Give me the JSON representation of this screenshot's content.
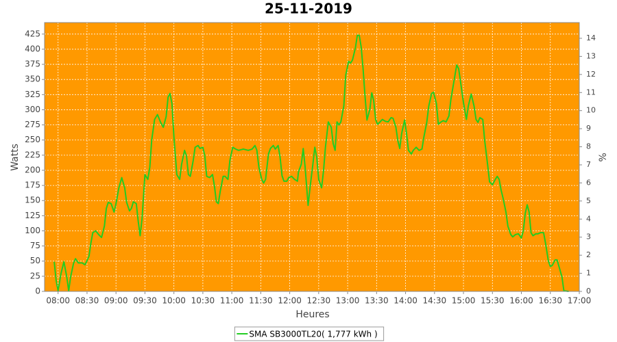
{
  "chart_data": {
    "type": "line",
    "title": "25-11-2019",
    "x_label": "Heures",
    "y_label": "Watts",
    "y2_label": "%",
    "x": [
      "07:56",
      "07:58",
      "08:00",
      "08:03",
      "08:06",
      "08:09",
      "08:11",
      "08:13",
      "08:16",
      "08:18",
      "08:21",
      "08:25",
      "08:28",
      "08:32",
      "08:34",
      "08:36",
      "08:39",
      "08:42",
      "08:45",
      "08:48",
      "08:50",
      "08:52",
      "08:55",
      "08:58",
      "09:00",
      "09:03",
      "09:06",
      "09:09",
      "09:11",
      "09:14",
      "09:16",
      "09:18",
      "09:21",
      "09:23",
      "09:25",
      "09:27",
      "09:30",
      "09:33",
      "09:35",
      "09:37",
      "09:40",
      "09:43",
      "09:46",
      "09:49",
      "09:52",
      "09:54",
      "09:56",
      "09:58",
      "10:00",
      "10:03",
      "10:06",
      "10:08",
      "10:11",
      "10:13",
      "10:15",
      "10:17",
      "10:20",
      "10:22",
      "10:25",
      "10:27",
      "10:30",
      "10:32",
      "10:34",
      "10:37",
      "10:40",
      "10:42",
      "10:44",
      "10:46",
      "10:48",
      "10:51",
      "10:53",
      "10:56",
      "10:58",
      "11:01",
      "11:04",
      "11:07",
      "11:12",
      "11:17",
      "11:21",
      "11:24",
      "11:26",
      "11:28",
      "11:31",
      "11:33",
      "11:35",
      "11:38",
      "11:40",
      "11:43",
      "11:45",
      "11:48",
      "11:50",
      "11:52",
      "11:54",
      "11:57",
      "11:59",
      "12:02",
      "12:05",
      "12:08",
      "12:09",
      "12:12",
      "12:14",
      "12:16",
      "12:19",
      "12:21",
      "12:24",
      "12:26",
      "12:28",
      "12:30",
      "12:33",
      "12:35",
      "12:37",
      "12:40",
      "12:43",
      "12:45",
      "12:47",
      "12:49",
      "12:51",
      "12:53",
      "12:56",
      "12:58",
      "13:01",
      "13:03",
      "13:05",
      "13:08",
      "13:10",
      "13:12",
      "13:14",
      "13:16",
      "13:18",
      "13:20",
      "13:23",
      "13:25",
      "13:27",
      "13:29",
      "13:31",
      "13:33",
      "13:36",
      "13:39",
      "13:42",
      "13:45",
      "13:47",
      "13:50",
      "13:52",
      "13:54",
      "13:56",
      "13:59",
      "14:01",
      "14:03",
      "14:06",
      "14:08",
      "14:11",
      "14:14",
      "14:17",
      "14:19",
      "14:22",
      "14:24",
      "14:27",
      "14:29",
      "14:32",
      "14:34",
      "14:36",
      "14:39",
      "14:42",
      "14:45",
      "14:47",
      "14:50",
      "14:53",
      "14:55",
      "14:57",
      "15:00",
      "15:03",
      "15:05",
      "15:08",
      "15:11",
      "15:13",
      "15:15",
      "15:17",
      "15:20",
      "15:22",
      "15:25",
      "15:27",
      "15:30",
      "15:33",
      "15:35",
      "15:37",
      "15:39",
      "15:41",
      "15:44",
      "15:46",
      "15:49",
      "15:51",
      "15:54",
      "15:57",
      "16:00",
      "16:02",
      "16:04",
      "16:06",
      "16:08",
      "16:10",
      "16:12",
      "16:15",
      "16:17",
      "16:20",
      "16:23",
      "16:25",
      "16:28",
      "16:30",
      "16:32",
      "16:35",
      "16:37",
      "16:39",
      "16:42",
      "16:44",
      "16:49"
    ],
    "series": [
      {
        "name": "SMA SB3000TL20( 1,777 kWh )",
        "color": "#22cc22",
        "values": [
          49,
          18,
          1,
          29,
          49,
          24,
          1,
          24,
          46,
          54,
          47,
          47,
          44,
          58,
          80,
          97,
          100,
          94,
          89,
          108,
          137,
          147,
          145,
          131,
          145,
          171,
          188,
          171,
          147,
          133,
          137,
          148,
          145,
          116,
          92,
          120,
          193,
          185,
          205,
          250,
          284,
          292,
          280,
          271,
          289,
          321,
          327,
          310,
          255,
          193,
          185,
          210,
          233,
          224,
          193,
          190,
          216,
          238,
          241,
          236,
          238,
          224,
          190,
          188,
          193,
          174,
          148,
          145,
          165,
          190,
          190,
          185,
          216,
          238,
          235,
          233,
          235,
          233,
          235,
          241,
          233,
          205,
          185,
          179,
          185,
          227,
          236,
          241,
          235,
          241,
          222,
          191,
          182,
          182,
          188,
          190,
          185,
          182,
          197,
          210,
          236,
          205,
          142,
          171,
          210,
          238,
          222,
          185,
          171,
          199,
          238,
          280,
          271,
          244,
          233,
          280,
          275,
          280,
          306,
          357,
          380,
          377,
          382,
          402,
          423,
          423,
          404,
          368,
          323,
          283,
          301,
          328,
          315,
          284,
          276,
          279,
          284,
          281,
          280,
          287,
          286,
          271,
          249,
          236,
          261,
          283,
          261,
          233,
          227,
          233,
          238,
          233,
          235,
          255,
          279,
          306,
          327,
          329,
          310,
          276,
          279,
          282,
          280,
          290,
          317,
          346,
          374,
          368,
          346,
          312,
          284,
          306,
          326,
          306,
          284,
          279,
          287,
          284,
          249,
          210,
          181,
          176,
          185,
          190,
          185,
          167,
          154,
          131,
          108,
          94,
          90,
          94,
          95,
          88,
          100,
          129,
          143,
          131,
          97,
          92,
          95,
          95,
          97,
          97,
          80,
          50,
          41,
          43,
          52,
          52,
          41,
          24,
          1,
          0
        ]
      }
    ],
    "xlim": [
      "07:46",
      "17:00"
    ],
    "xticks": [
      "08:00",
      "08:30",
      "09:00",
      "09:30",
      "10:00",
      "10:30",
      "11:00",
      "11:30",
      "12:00",
      "12:30",
      "13:00",
      "13:30",
      "14:00",
      "14:30",
      "15:00",
      "15:30",
      "16:00",
      "16:30",
      "17:00"
    ],
    "ylim": [
      0,
      444
    ],
    "yticks": [
      0,
      25,
      50,
      75,
      100,
      125,
      150,
      175,
      200,
      225,
      250,
      275,
      300,
      325,
      350,
      375,
      400,
      425
    ],
    "y2lim": [
      0,
      14.87
    ],
    "y2ticks": [
      0,
      1,
      2,
      3,
      4,
      5,
      6,
      7,
      8,
      9,
      10,
      11,
      12,
      13,
      14
    ],
    "grid": true,
    "plot_background": "#ff9900",
    "legend": "bottom"
  }
}
